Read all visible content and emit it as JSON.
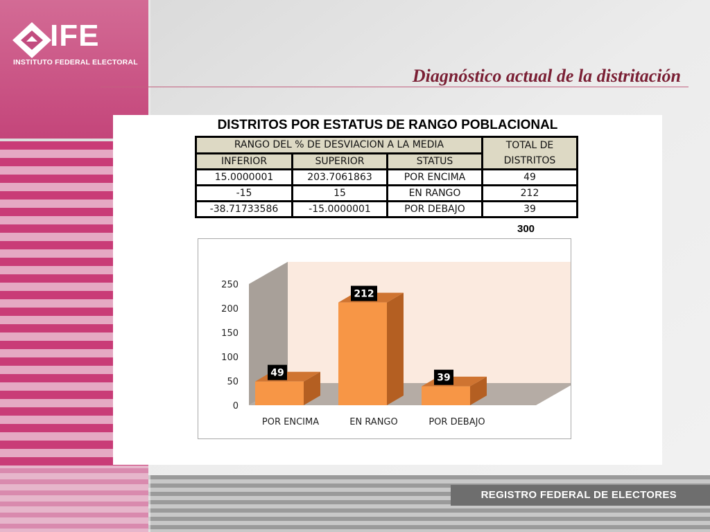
{
  "header": {
    "logo_text": "IFE",
    "logo_subtitle": "INSTITUTO FEDERAL ELECTORAL",
    "slide_title": "Diagnóstico actual de la distritación"
  },
  "table": {
    "title": "DISTRITOS POR ESTATUS DE RANGO POBLACIONAL",
    "group_header": "RANGO DEL % DE DESVIACION A LA MEDIA",
    "total_header_1": "TOTAL DE",
    "total_header_2": "DISTRITOS",
    "columns": [
      "INFERIOR",
      "SUPERIOR",
      "STATUS"
    ],
    "rows": [
      [
        "15.0000001",
        "203.7061863",
        "POR ENCIMA",
        "49"
      ],
      [
        "-15",
        "15",
        "EN RANGO",
        "212"
      ],
      [
        "-38.71733586",
        "-15.0000001",
        "POR DEBAJO",
        "39"
      ]
    ],
    "total": "300"
  },
  "chart_data": {
    "type": "bar",
    "categories": [
      "POR ENCIMA",
      "EN RANGO",
      "POR DEBAJO"
    ],
    "values": [
      49,
      212,
      39
    ],
    "yticks": [
      "0",
      "50",
      "100",
      "150",
      "200",
      "250"
    ],
    "ylim": [
      0,
      250
    ],
    "title": "",
    "xlabel": "",
    "ylabel": "",
    "grid": false,
    "legend": "none",
    "bar_color": "#f79646",
    "bar_side_color": "#b45f22",
    "bar_top_color": "#cf7431",
    "back_wall_color": "#fbeadf",
    "side_wall_color": "#a8a099",
    "floor_color": "#b5aca5"
  },
  "footer": {
    "text": "REGISTRO FEDERAL DE ELECTORES"
  }
}
